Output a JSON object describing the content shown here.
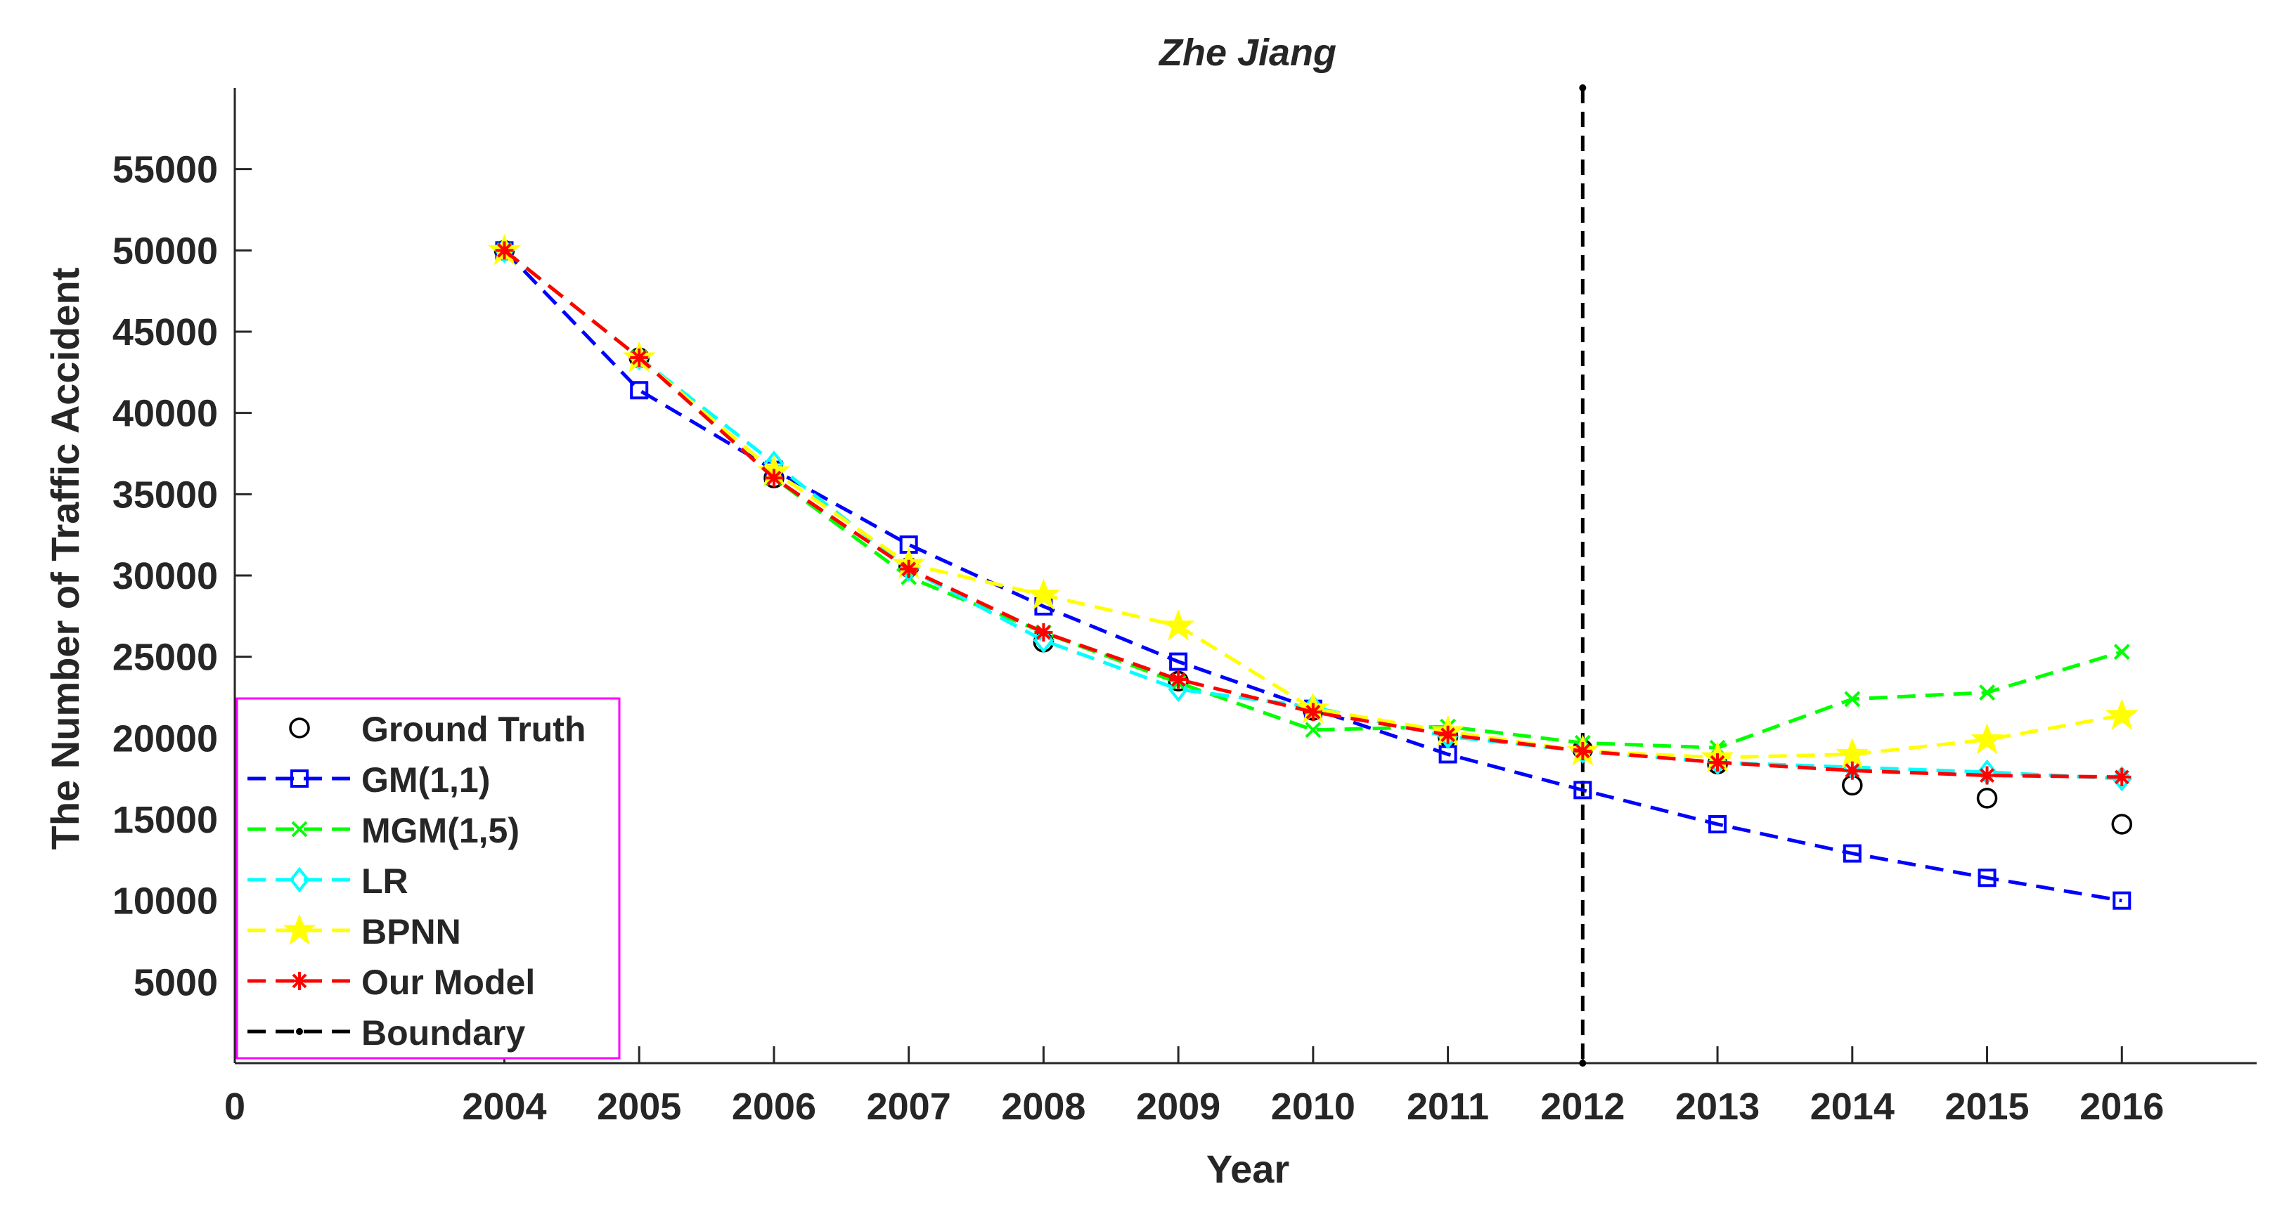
{
  "chart_data": {
    "type": "line",
    "title": "Zhe Jiang",
    "xlabel": "Year",
    "ylabel": "The Number of Traffic Accident",
    "xlim": [
      2002,
      2017
    ],
    "ylim": [
      0,
      60000
    ],
    "x_tick_labels": [
      "0",
      "2004",
      "2005",
      "2006",
      "2007",
      "2008",
      "2009",
      "2010",
      "2011",
      "2012",
      "2013",
      "2014",
      "2015",
      "2016"
    ],
    "y_ticks": [
      5000,
      10000,
      15000,
      20000,
      25000,
      30000,
      35000,
      40000,
      45000,
      50000,
      55000
    ],
    "x": [
      2004,
      2005,
      2006,
      2007,
      2008,
      2009,
      2010,
      2011,
      2012,
      2013,
      2014,
      2015,
      2016
    ],
    "legend_position": "bottom-left",
    "boundary": {
      "name": "Boundary",
      "x": 2012,
      "color": "#000000"
    },
    "series": [
      {
        "name": "Ground Truth",
        "color": "#000000",
        "marker": "circle",
        "line": "none",
        "values": [
          50000,
          43400,
          36000,
          30500,
          25900,
          23500,
          21700,
          20100,
          19300,
          18400,
          17100,
          16300,
          14700
        ]
      },
      {
        "name": "GM(1,1)",
        "color": "#0000ff",
        "marker": "square",
        "line": "dashed",
        "values": [
          50000,
          41400,
          36500,
          31900,
          28100,
          24700,
          21800,
          19000,
          16800,
          14700,
          12900,
          11400,
          10000
        ]
      },
      {
        "name": "MGM(1,5)",
        "color": "#00ff00",
        "marker": "x",
        "line": "dashed",
        "values": [
          50000,
          43400,
          36000,
          29900,
          26500,
          23400,
          20500,
          20700,
          19700,
          19400,
          22400,
          22800,
          25300
        ]
      },
      {
        "name": "LR",
        "color": "#00ffff",
        "marker": "diamond",
        "line": "dashed",
        "values": [
          50000,
          43400,
          36900,
          30400,
          26000,
          23000,
          21900,
          20100,
          19200,
          18500,
          18200,
          17900,
          17500
        ]
      },
      {
        "name": "BPNN",
        "color": "#ffff00",
        "marker": "star",
        "line": "dashed",
        "values": [
          50000,
          43400,
          36400,
          30700,
          28800,
          26900,
          21800,
          20400,
          19200,
          18800,
          19000,
          19900,
          21400
        ]
      },
      {
        "name": "Our Model",
        "color": "#ff0000",
        "marker": "asterisk",
        "line": "dashed",
        "values": [
          50000,
          43400,
          36000,
          30400,
          26500,
          23600,
          21600,
          20200,
          19200,
          18500,
          18000,
          17700,
          17600
        ]
      }
    ]
  }
}
